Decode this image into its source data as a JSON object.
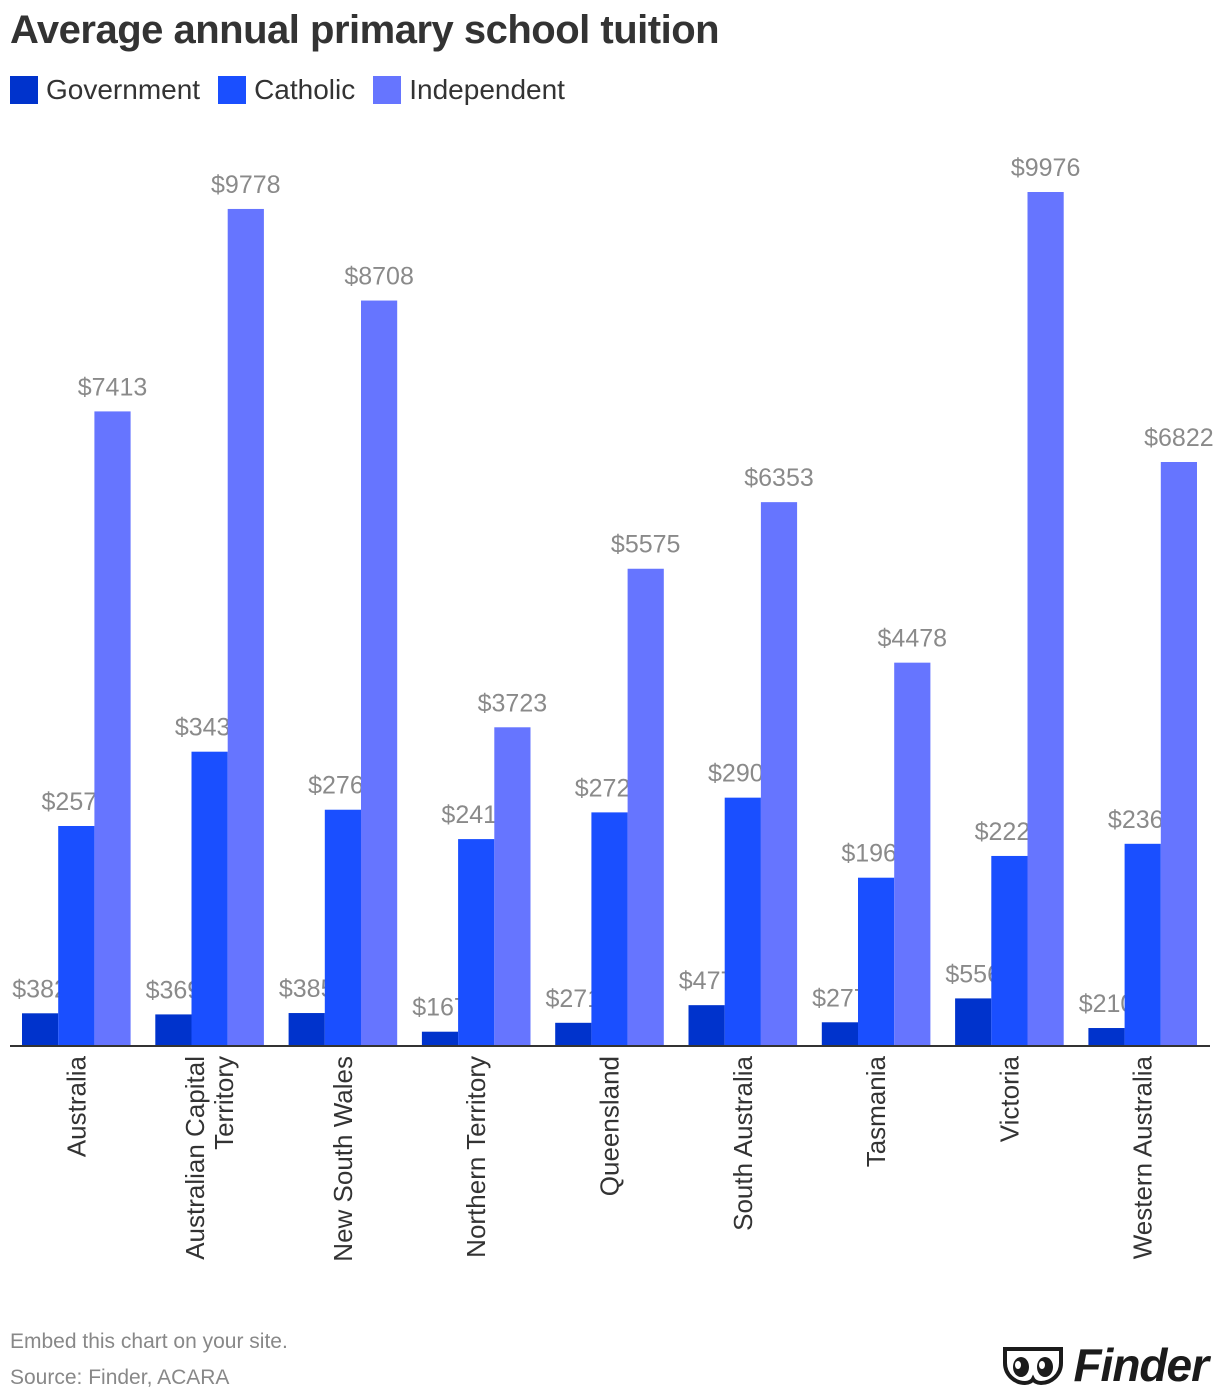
{
  "title": "Average annual primary school tuition",
  "footer": {
    "embed": "Embed this chart on your site.",
    "source": "Source: Finder, ACARA"
  },
  "logo": {
    "wordmark": "Finder",
    "icon": "finder-eyes-icon"
  },
  "chart_data": {
    "type": "bar",
    "title": "Average annual primary school tuition",
    "categories": [
      "Australia",
      "Australian Capital Territory",
      "New South Wales",
      "Northern Territory",
      "Queensland",
      "South Australia",
      "Tasmania",
      "Victoria",
      "Western Australia"
    ],
    "series": [
      {
        "name": "Government",
        "color": "#0033cc",
        "values": [
          382,
          369,
          385,
          167,
          271,
          477,
          277,
          556,
          210
        ]
      },
      {
        "name": "Catholic",
        "color": "#1a4fff",
        "values": [
          2570,
          3438,
          2760,
          2417,
          2729,
          2901,
          1966,
          2220,
          2362
        ]
      },
      {
        "name": "Independent",
        "color": "#6675ff",
        "values": [
          7413,
          9778,
          8708,
          3723,
          5575,
          6353,
          4478,
          9976,
          6822
        ]
      }
    ],
    "value_prefix": "$",
    "ylim": [
      0,
      10000
    ],
    "grid": false,
    "legend": "top-left",
    "xlabel": "",
    "ylabel": ""
  }
}
